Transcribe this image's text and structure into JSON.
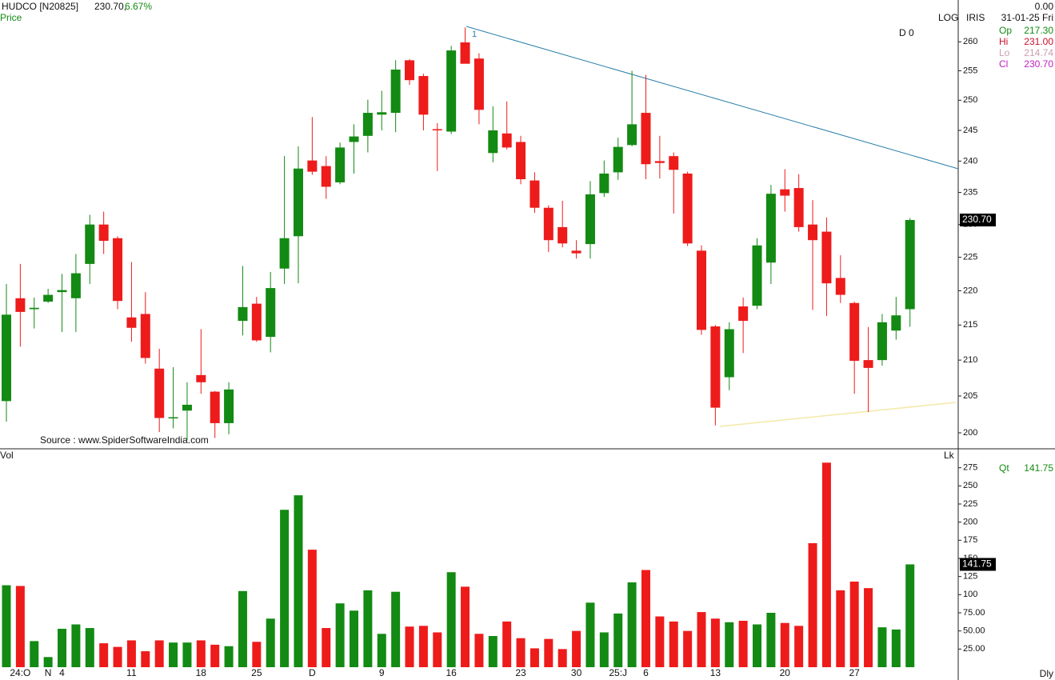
{
  "header": {
    "symbol": "HUDCO [N20825]",
    "last": "230.70,",
    "change": "6.67%",
    "series_label": "Price",
    "scale": "LOG",
    "indicator": "IRIS",
    "zero": "0.00",
    "date": "31-01-25 Fri",
    "ohlc": [
      {
        "label": "Op",
        "value": "217.30"
      },
      {
        "label": "Hi",
        "value": "231.00"
      },
      {
        "label": "Lo",
        "value": "214.74"
      },
      {
        "label": "Cl",
        "value": "230.70"
      }
    ],
    "d_label": "D 0",
    "source": "Source : www.SpiderSoftwareIndia.com",
    "trend_label": "1",
    "vol_label": "Vol",
    "unit": "Lk",
    "qt_label": "Qt",
    "qt_value": "141.75",
    "period": "Dly"
  },
  "chart_data": [
    {
      "type": "candlestick",
      "log_scale": true,
      "up_color": "#138a13",
      "down_color": "#ee1b1b",
      "categories": [
        null,
        "24:O",
        null,
        "N",
        "4",
        null,
        null,
        null,
        null,
        "11",
        null,
        null,
        null,
        null,
        "18",
        null,
        null,
        null,
        "25",
        null,
        null,
        null,
        "D",
        null,
        null,
        null,
        null,
        "9",
        null,
        null,
        null,
        null,
        "16",
        null,
        null,
        null,
        null,
        "23",
        null,
        null,
        null,
        "30",
        null,
        null,
        "25:J",
        null,
        "6",
        null,
        null,
        null,
        null,
        "13",
        null,
        null,
        null,
        null,
        "20",
        null,
        null,
        null,
        null,
        "27",
        null,
        null,
        null,
        null
      ],
      "open": [
        204.3,
        218.9,
        217.3,
        218.4,
        219.8,
        218.9,
        224.0,
        230.0,
        227.9,
        216.1,
        216.6,
        208.8,
        202.0,
        203.0,
        207.9,
        205.6,
        201.3,
        215.6,
        218.1,
        213.3,
        223.3,
        228.2,
        240.1,
        239.2,
        236.6,
        243.1,
        244.1,
        247.6,
        247.9,
        256.8,
        254.1,
        245.2,
        244.8,
        259.9,
        257.1,
        241.3,
        244.5,
        243.1,
        236.9,
        232.6,
        229.6,
        226.0,
        227.0,
        234.9,
        238.2,
        242.6,
        247.9,
        240.0,
        240.8,
        238.0,
        226.0,
        214.8,
        207.6,
        217.7,
        217.8,
        224.2,
        235.5,
        235.7,
        230.0,
        228.9,
        221.9,
        218.2,
        210.0,
        210.0,
        214.2,
        217.3
      ],
      "high": [
        221.0,
        224.0,
        219.0,
        220.3,
        222.5,
        225.5,
        231.5,
        232.0,
        228.2,
        224.3,
        219.8,
        211.6,
        209.0,
        206.9,
        214.4,
        205.7,
        206.9,
        223.7,
        219.1,
        222.8,
        240.8,
        242.4,
        247.2,
        240.8,
        243.0,
        246.0,
        250.1,
        251.6,
        256.8,
        257.0,
        254.5,
        246.2,
        259.3,
        262.5,
        258.0,
        249.0,
        249.8,
        244.1,
        238.2,
        233.0,
        233.7,
        227.6,
        236.8,
        240.1,
        243.8,
        255.0,
        254.3,
        244.1,
        241.4,
        238.3,
        226.8,
        215.0,
        215.4,
        219.0,
        227.9,
        236.2,
        238.7,
        237.9,
        233.8,
        231.1,
        225.3,
        218.4,
        214.7,
        216.6,
        219.1,
        231.0
      ],
      "low": [
        201.5,
        211.9,
        214.5,
        218.2,
        214.0,
        214.0,
        221.0,
        225.5,
        217.3,
        212.6,
        209.5,
        200.1,
        200.6,
        199.0,
        205.3,
        199.3,
        199.8,
        213.5,
        212.6,
        211.1,
        221.0,
        221.1,
        237.8,
        234.0,
        236.3,
        238.0,
        241.4,
        245.0,
        244.7,
        252.6,
        245.0,
        238.4,
        244.4,
        256.8,
        246.0,
        239.8,
        241.9,
        236.3,
        231.8,
        225.8,
        226.5,
        224.8,
        224.8,
        234.3,
        237.0,
        242.4,
        237.1,
        237.2,
        231.7,
        226.7,
        213.6,
        201.0,
        205.8,
        211.0,
        217.3,
        221.0,
        232.0,
        228.9,
        217.2,
        216.3,
        218.2,
        205.3,
        202.8,
        209.2,
        212.9,
        214.74
      ],
      "close": [
        216.5,
        216.9,
        217.5,
        219.4,
        220.1,
        222.6,
        230.0,
        227.5,
        218.5,
        214.6,
        210.3,
        202.0,
        202.1,
        203.8,
        206.9,
        201.3,
        205.9,
        217.6,
        212.8,
        220.4,
        227.9,
        238.8,
        238.3,
        235.9,
        242.2,
        244.0,
        247.9,
        248.0,
        255.2,
        253.4,
        247.6,
        245.0,
        258.5,
        256.2,
        248.4,
        245.0,
        242.2,
        237.1,
        232.6,
        227.6,
        227.1,
        225.6,
        234.7,
        238.0,
        242.3,
        246.0,
        239.5,
        239.7,
        238.6,
        227.1,
        214.3,
        203.4,
        214.4,
        215.6,
        226.8,
        234.8,
        234.5,
        229.6,
        227.6,
        221.1,
        219.4,
        209.9,
        208.9,
        215.4,
        216.4,
        230.7
      ],
      "ylim": [
        197.97,
        267.4
      ],
      "yticks": [
        200,
        205,
        210,
        215,
        220,
        225,
        230,
        235,
        240,
        245,
        250,
        255,
        260
      ]
    },
    {
      "type": "bar",
      "values": [
        113,
        112,
        36,
        14,
        53,
        59,
        54,
        33,
        28,
        37,
        22,
        37,
        34,
        34,
        37,
        31,
        29,
        105,
        35,
        67,
        217,
        237,
        162,
        54,
        88,
        78,
        106,
        46,
        104,
        56,
        57,
        48,
        131,
        111,
        46,
        43,
        63,
        40,
        26,
        39,
        25,
        50,
        89,
        48,
        74,
        117,
        134,
        70,
        63,
        50,
        76,
        67,
        62,
        64,
        59,
        75,
        61,
        57,
        171,
        282,
        106,
        118,
        109,
        55,
        52,
        141.75
      ],
      "ylim": [
        0,
        300
      ],
      "yticks": [
        {
          "value": 25,
          "label": "25.00"
        },
        {
          "value": 50,
          "label": "50.00"
        },
        {
          "value": 75,
          "label": "75.00"
        },
        100,
        125,
        150,
        175,
        200,
        225,
        250,
        275
      ]
    }
  ]
}
